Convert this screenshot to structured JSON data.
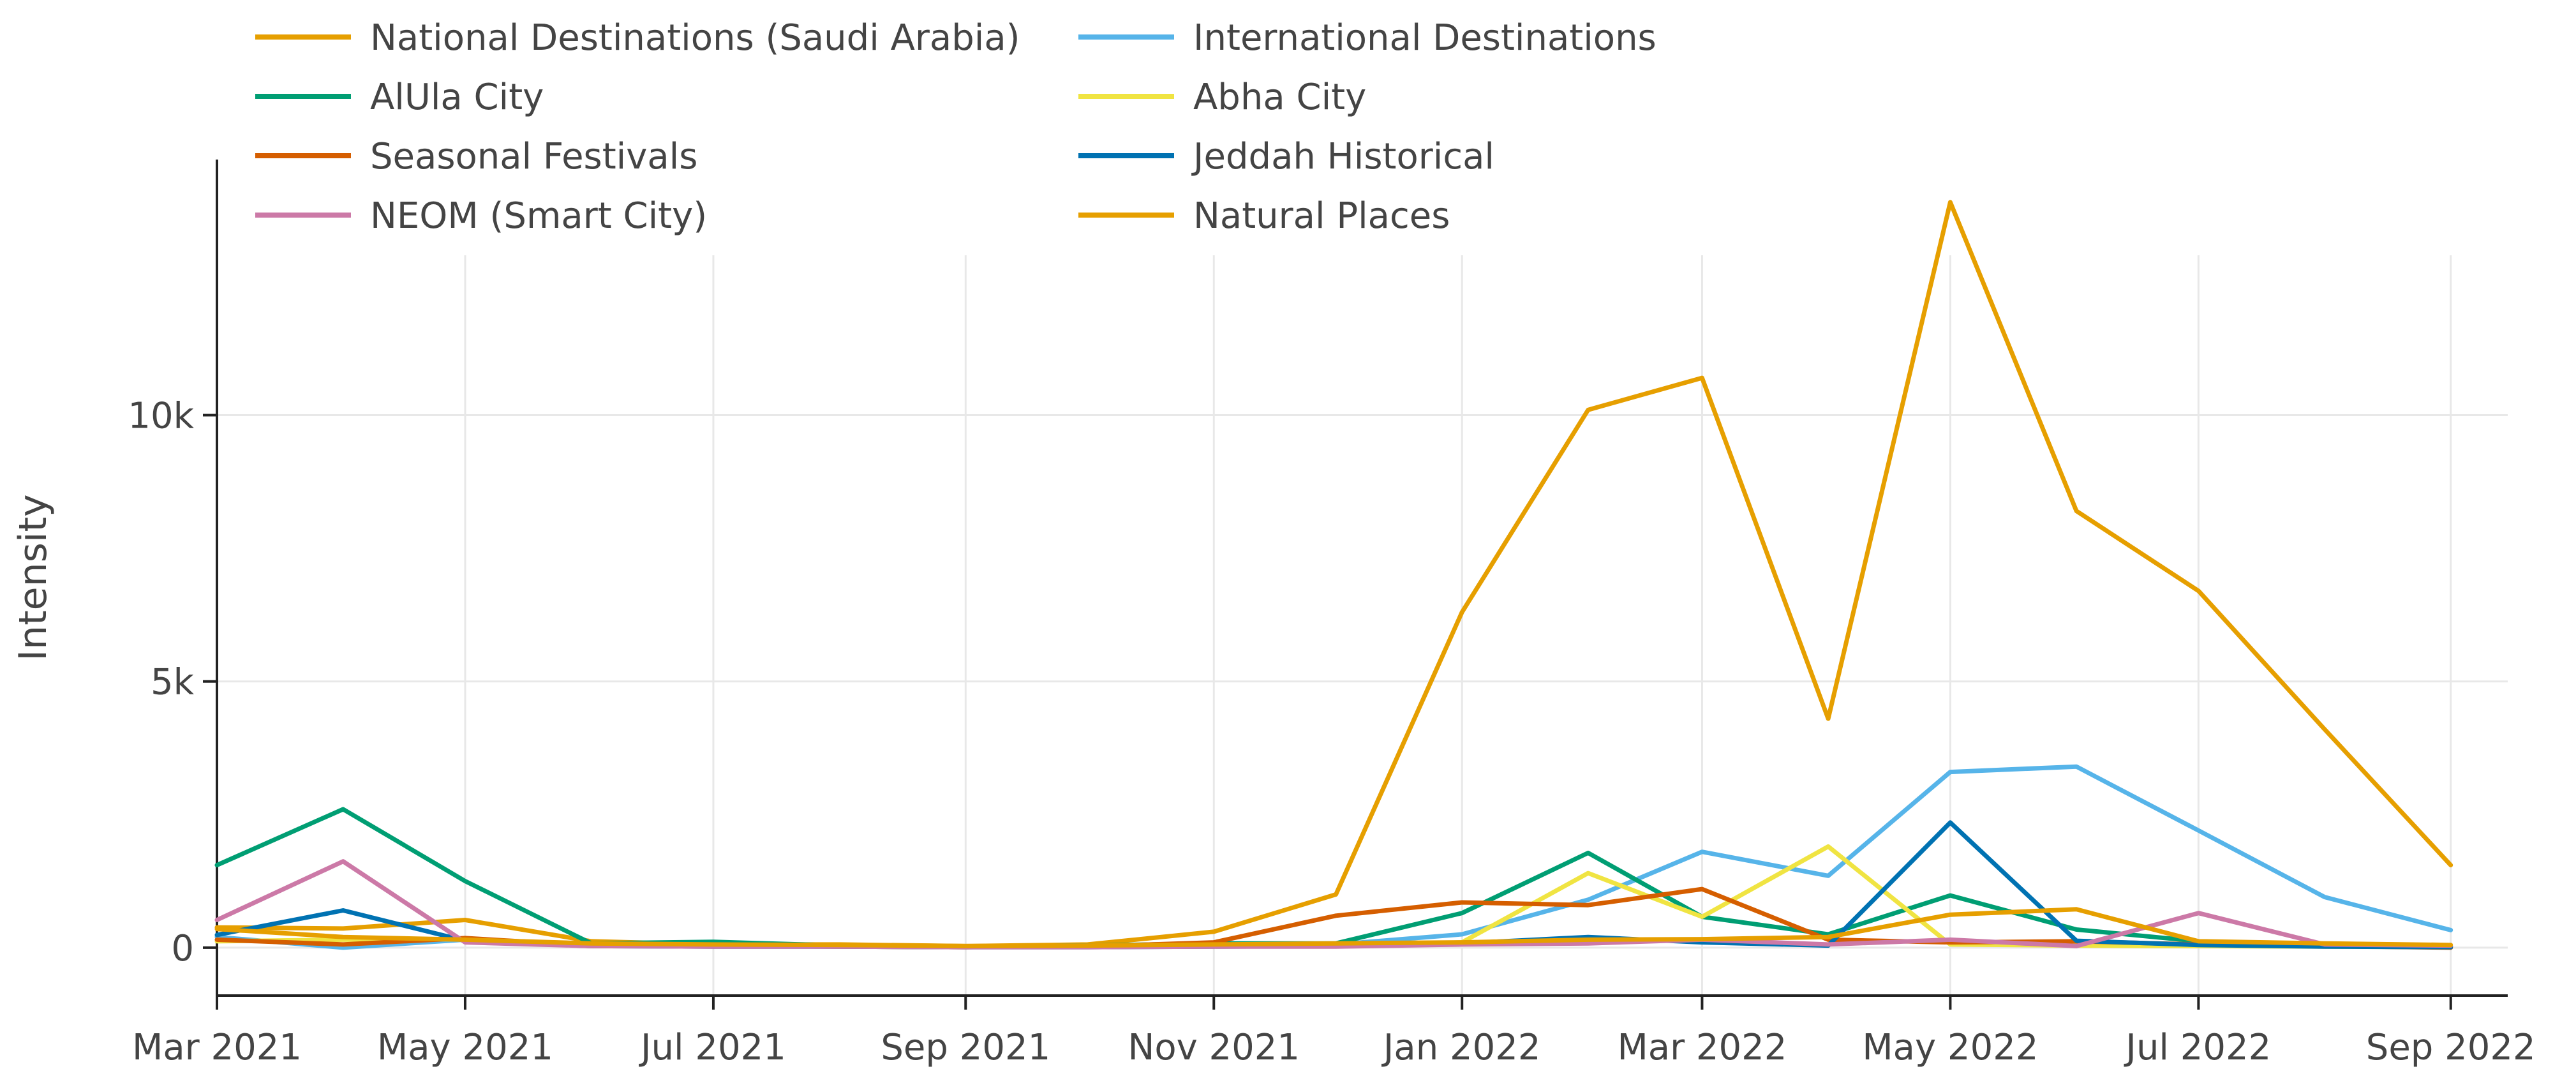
{
  "chart_data": {
    "type": "line",
    "title": "",
    "xlabel": "",
    "ylabel": "Intensity",
    "x": [
      "2021-03-01",
      "2021-04-01",
      "2021-05-01",
      "2021-06-01",
      "2021-07-01",
      "2021-08-01",
      "2021-09-01",
      "2021-10-01",
      "2021-11-01",
      "2021-12-01",
      "2022-01-01",
      "2022-02-01",
      "2022-03-01",
      "2022-04-01",
      "2022-05-01",
      "2022-06-01",
      "2022-07-01",
      "2022-08-01",
      "2022-09-01"
    ],
    "xlim": [
      "2021-03-01",
      "2022-09-15"
    ],
    "ylim": [
      -900,
      14800
    ],
    "grid": true,
    "legend_position": "top",
    "x_ticks": [
      {
        "date": "2021-03-01",
        "label": "Mar 2021"
      },
      {
        "date": "2021-05-01",
        "label": "May 2021"
      },
      {
        "date": "2021-07-01",
        "label": "Jul 2021"
      },
      {
        "date": "2021-09-01",
        "label": "Sep 2021"
      },
      {
        "date": "2021-11-01",
        "label": "Nov 2021"
      },
      {
        "date": "2022-01-01",
        "label": "Jan 2022"
      },
      {
        "date": "2022-03-01",
        "label": "Mar 2022"
      },
      {
        "date": "2022-05-01",
        "label": "May 2022"
      },
      {
        "date": "2022-07-01",
        "label": "Jul 2022"
      },
      {
        "date": "2022-09-01",
        "label": "Sep 2022"
      }
    ],
    "y_ticks": [
      {
        "value": 0,
        "label": "0"
      },
      {
        "value": 5000,
        "label": "5k"
      },
      {
        "value": 10000,
        "label": "10k"
      }
    ],
    "series": [
      {
        "name": "National Destinations (Saudi Arabia)",
        "color": "#e69f00",
        "values": [
          380,
          360,
          520,
          120,
          60,
          60,
          30,
          60,
          300,
          1000,
          6300,
          10100,
          10700,
          4300,
          14000,
          8200,
          6700,
          4100,
          1550
        ]
      },
      {
        "name": "International Destinations",
        "color": "#56b4e9",
        "values": [
          200,
          0,
          150,
          40,
          40,
          40,
          20,
          40,
          40,
          60,
          250,
          900,
          1800,
          1350,
          3300,
          3400,
          2200,
          950,
          330
        ]
      },
      {
        "name": "AlUla City",
        "color": "#009e73",
        "values": [
          1550,
          2600,
          1250,
          80,
          110,
          40,
          20,
          40,
          80,
          80,
          650,
          1780,
          580,
          250,
          980,
          340,
          120,
          40,
          20
        ]
      },
      {
        "name": "Abha City",
        "color": "#f0e442",
        "values": [
          120,
          150,
          160,
          40,
          40,
          20,
          10,
          20,
          40,
          40,
          100,
          1400,
          580,
          1900,
          60,
          40,
          30,
          20,
          10
        ]
      },
      {
        "name": "Seasonal Festivals",
        "color": "#d55e00",
        "values": [
          150,
          60,
          180,
          40,
          30,
          20,
          10,
          20,
          100,
          600,
          850,
          800,
          1100,
          150,
          100,
          120,
          60,
          30,
          0
        ]
      },
      {
        "name": "Jeddah Historical",
        "color": "#0072b2",
        "values": [
          240,
          700,
          130,
          30,
          20,
          20,
          10,
          10,
          20,
          30,
          80,
          200,
          100,
          40,
          2350,
          130,
          50,
          20,
          10
        ]
      },
      {
        "name": "NEOM (Smart City)",
        "color": "#cc79a7",
        "values": [
          520,
          1620,
          100,
          30,
          20,
          20,
          10,
          10,
          20,
          20,
          60,
          80,
          150,
          60,
          150,
          30,
          650,
          60,
          40
        ]
      },
      {
        "name": "Natural Places",
        "color": "#e69f00",
        "values": [
          350,
          200,
          150,
          80,
          60,
          50,
          30,
          40,
          60,
          80,
          100,
          150,
          160,
          200,
          620,
          720,
          120,
          80,
          50
        ]
      }
    ]
  }
}
